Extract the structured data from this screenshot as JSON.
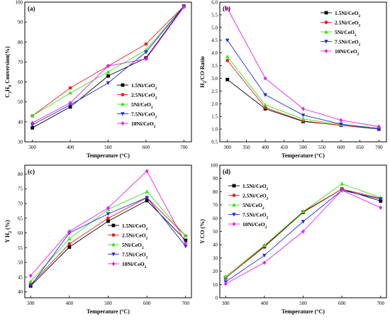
{
  "colors": {
    "1.5Ni/CeO2": "#000000",
    "2.5Ni/CeO2": "#e8221e",
    "5Ni/CeO2": "#39e21f",
    "7.5Ni/CeO2": "#1d2ce0",
    "10Ni/CeO2": "#e91ef0"
  },
  "markers": {
    "1.5Ni/CeO2": "square",
    "2.5Ni/CeO2": "circle",
    "5Ni/CeO2": "triangle-up",
    "7.5Ni/CeO2": "triangle-down",
    "10Ni/CeO2": "diamond"
  },
  "chart_data": [
    {
      "id": "a",
      "panel_label": "(a)",
      "type": "line",
      "xlabel": "Temperature (°C)",
      "ylabel": "C3H8 Conversion(%)",
      "xlim": [
        280,
        720
      ],
      "ylim": [
        30,
        100
      ],
      "xticks": [
        300,
        400,
        500,
        600,
        700
      ],
      "yticks": [
        30,
        40,
        50,
        60,
        70,
        80,
        90,
        100
      ],
      "legend_position": "center-right",
      "x": [
        300,
        400,
        500,
        600,
        700
      ],
      "series": [
        {
          "name": "1.5Ni/CeO2",
          "values": [
            37,
            47.5,
            63,
            72,
            98
          ]
        },
        {
          "name": "2.5Ni/CeO2",
          "values": [
            43,
            57,
            68,
            79,
            98
          ]
        },
        {
          "name": "5Ni/CeO2",
          "values": [
            43,
            54.5,
            65,
            76,
            98
          ]
        },
        {
          "name": "7.5Ni/CeO2",
          "values": [
            38.5,
            48.5,
            59.5,
            75,
            98
          ]
        },
        {
          "name": "10Ni/CeO2",
          "values": [
            39.5,
            49.5,
            68,
            71.5,
            97.5
          ]
        }
      ]
    },
    {
      "id": "b",
      "panel_label": "(b)",
      "type": "line",
      "xlabel": "Temperature (°C)",
      "ylabel": "H2/CO Ratio",
      "xlim": [
        280,
        720
      ],
      "ylim": [
        0.5,
        6.0
      ],
      "xticks": [
        300,
        350,
        400,
        450,
        500,
        550,
        600,
        650,
        700
      ],
      "yticks": [
        0.5,
        1.0,
        1.5,
        2.0,
        2.5,
        3.0,
        3.5,
        4.0,
        4.5,
        5.0,
        5.5,
        6.0
      ],
      "legend_position": "top-right",
      "x": [
        300,
        400,
        500,
        600,
        700
      ],
      "series": [
        {
          "name": "1.5Ni/CeO2",
          "values": [
            2.95,
            1.8,
            1.3,
            1.15,
            1.0
          ]
        },
        {
          "name": "2.5Ni/CeO2",
          "values": [
            3.7,
            1.85,
            1.32,
            1.15,
            1.02
          ]
        },
        {
          "name": "5Ni/CeO2",
          "values": [
            3.85,
            1.95,
            1.4,
            1.18,
            1.05
          ]
        },
        {
          "name": "7.5Ni/CeO2",
          "values": [
            4.5,
            2.35,
            1.55,
            1.2,
            1.0
          ]
        },
        {
          "name": "10Ni/CeO2",
          "values": [
            5.75,
            3.0,
            1.8,
            1.35,
            1.1
          ]
        }
      ]
    },
    {
      "id": "c",
      "panel_label": "(c)",
      "type": "line",
      "xlabel": "Temperature (°C)",
      "ylabel": "Y H2 (%)",
      "xlim": [
        285,
        715
      ],
      "ylim": [
        38,
        83
      ],
      "xticks": [
        300,
        400,
        500,
        600,
        700
      ],
      "yticks": [
        40,
        45,
        50,
        55,
        60,
        65,
        70,
        75,
        80
      ],
      "legend_position": "bottom-center",
      "x": [
        300,
        400,
        500,
        600,
        700
      ],
      "series": [
        {
          "name": "1.5Ni/CeO2",
          "values": [
            42,
            55.2,
            64,
            71,
            57.5
          ]
        },
        {
          "name": "2.5Ni/CeO2",
          "values": [
            42.5,
            56.3,
            65,
            72,
            59
          ]
        },
        {
          "name": "5Ni/CeO2",
          "values": [
            43.5,
            58,
            68,
            74,
            59
          ]
        },
        {
          "name": "7.5Ni/CeO2",
          "values": [
            42,
            60,
            66.5,
            72,
            55.5
          ]
        },
        {
          "name": "10Ni/CeO2",
          "values": [
            45.5,
            60.5,
            68.5,
            81,
            56.5
          ]
        }
      ]
    },
    {
      "id": "d",
      "panel_label": "(d)",
      "type": "line",
      "xlabel": "Temperature (°C)",
      "ylabel": "Y CO (%)",
      "xlim": [
        285,
        715
      ],
      "ylim": [
        0,
        100
      ],
      "xticks": [
        300,
        400,
        500,
        600,
        700
      ],
      "yticks": [
        0,
        10,
        20,
        30,
        40,
        50,
        60,
        70,
        80,
        90,
        100
      ],
      "legend_position": "top-left",
      "x": [
        300,
        400,
        500,
        600,
        700
      ],
      "series": [
        {
          "name": "1.5Ni/CeO2",
          "values": [
            15,
            38.5,
            64.5,
            82,
            73
          ]
        },
        {
          "name": "2.5Ni/CeO2",
          "values": [
            15,
            39,
            65,
            82,
            75
          ]
        },
        {
          "name": "5Ni/CeO2",
          "values": [
            16,
            39.5,
            65,
            86,
            75.5
          ]
        },
        {
          "name": "7.5Ni/CeO2",
          "values": [
            12,
            32,
            57.5,
            81,
            74.5
          ]
        },
        {
          "name": "10Ni/CeO2",
          "values": [
            10.5,
            26.5,
            50,
            81,
            68
          ]
        }
      ]
    }
  ]
}
